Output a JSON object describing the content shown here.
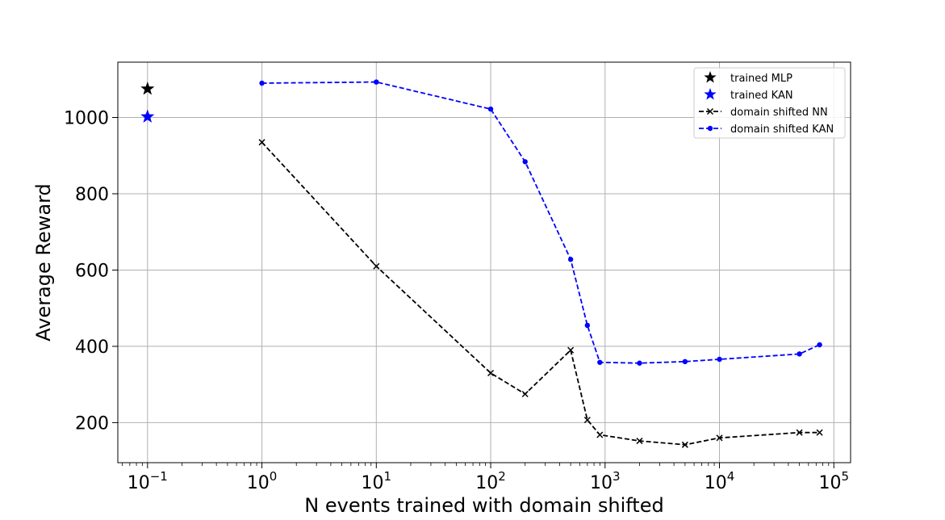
{
  "chart_data": {
    "type": "line",
    "title": "",
    "xlabel": "N events trained with domain shifted",
    "ylabel": "Average Reward",
    "xscale": "log",
    "xlim": [
      0.055,
      140000
    ],
    "ylim": [
      95,
      1145
    ],
    "grid": true,
    "legend_position": "top-right",
    "x_ticks": [
      {
        "value": 0.1,
        "base": "10",
        "exp": "−1"
      },
      {
        "value": 1,
        "base": "10",
        "exp": "0"
      },
      {
        "value": 10,
        "base": "10",
        "exp": "1"
      },
      {
        "value": 100,
        "base": "10",
        "exp": "2"
      },
      {
        "value": 1000,
        "base": "10",
        "exp": "3"
      },
      {
        "value": 10000,
        "base": "10",
        "exp": "4"
      },
      {
        "value": 100000,
        "base": "10",
        "exp": "5"
      }
    ],
    "y_ticks": [
      {
        "value": 200,
        "label": "200"
      },
      {
        "value": 400,
        "label": "400"
      },
      {
        "value": 600,
        "label": "600"
      },
      {
        "value": 800,
        "label": "800"
      },
      {
        "value": 1000,
        "label": "1000"
      }
    ],
    "series": [
      {
        "name": "trained MLP",
        "color": "#000000",
        "marker": "star",
        "line": "none",
        "x": [
          0.1
        ],
        "y": [
          1075
        ]
      },
      {
        "name": "trained KAN",
        "color": "#0000ff",
        "marker": "star",
        "line": "none",
        "x": [
          0.1
        ],
        "y": [
          1002
        ]
      },
      {
        "name": "domain shifted NN",
        "color": "#000000",
        "marker": "x",
        "line": "dashed",
        "x": [
          1,
          10,
          100,
          200,
          500,
          700,
          900,
          2000,
          5000,
          10000,
          50000,
          75000
        ],
        "y": [
          935,
          610,
          330,
          275,
          390,
          207,
          168,
          152,
          142,
          160,
          174,
          174
        ]
      },
      {
        "name": "domain shifted KAN",
        "color": "#0000ff",
        "marker": "dot",
        "line": "dashed",
        "x": [
          1,
          10,
          100,
          200,
          500,
          700,
          900,
          2000,
          5000,
          10000,
          50000,
          75000
        ],
        "y": [
          1090,
          1093,
          1022,
          884,
          628,
          455,
          358,
          356,
          360,
          366,
          380,
          404
        ]
      }
    ]
  }
}
